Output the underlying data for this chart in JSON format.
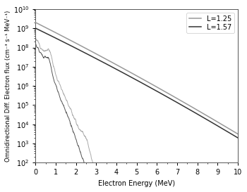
{
  "title": "",
  "xlabel": "Electron Energy (MeV)",
  "ylabel": "Omnidirectional Diff. Electron flux (cm⁻³ s⁻¹ MeV⁻¹)",
  "xlim": [
    0,
    10
  ],
  "ylim_log": [
    2,
    10
  ],
  "legend": [
    "L=1.25",
    "L=1.57"
  ],
  "line_color_L125_smooth": "#999999",
  "line_color_L157_smooth": "#333333",
  "line_color_L125_noisy": "#aaaaaa",
  "line_color_L157_noisy": "#555555",
  "bg_color": "#ffffff"
}
